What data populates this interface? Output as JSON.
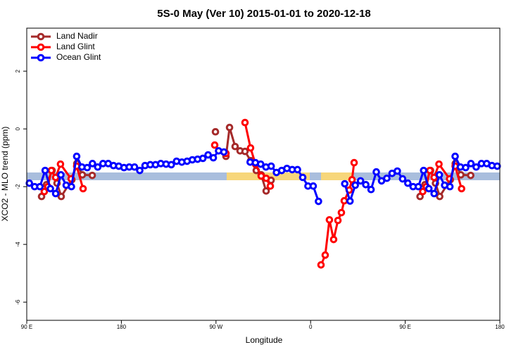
{
  "chart_data": {
    "type": "line",
    "title": "5S-0 May (Ver 10)   2015-01-01 to 2020-12-18",
    "xlabel": "Longitude",
    "ylabel": "XCO2 - MLO trend (ppm)",
    "xlim": [
      90,
      540
    ],
    "ylim": [
      -6.63,
      3.49
    ],
    "xticks": [
      {
        "value": 90,
        "label": "90 E"
      },
      {
        "value": 180,
        "label": "180"
      },
      {
        "value": 270,
        "label": "90 W"
      },
      {
        "value": 360,
        "label": "0"
      },
      {
        "value": 450,
        "label": "90 E"
      },
      {
        "value": 540,
        "label": "180"
      }
    ],
    "yticks": [
      -6,
      -4,
      -2,
      0,
      2
    ],
    "legend": "top-left",
    "series": [
      {
        "name": "Land Nadir",
        "color": "#a52a2a",
        "x": [
          104.1,
          108.8,
          114.1,
          118.8,
          122.8,
          132.9,
          137.6,
          142.9,
          152.3,
          200,
          269.5,
          275,
          279.5,
          282.9,
          288.2,
          292.9,
          297.6,
          303.0,
          308.3,
          313.0,
          317.7,
          322.4,
          400,
          464.1,
          468.8,
          474.1,
          478.8,
          482.8,
          492.9,
          497.6,
          502.9,
          512.3
        ],
        "values": [
          -2.34,
          -1.93,
          -1.44,
          -1.88,
          -2.34,
          -1.76,
          -1.2,
          -1.59,
          -1.61,
          null,
          -0.1,
          null,
          -0.95,
          0.05,
          -0.61,
          -0.76,
          -0.78,
          -1.1,
          -1.44,
          -1.59,
          -2.15,
          -1.78,
          null,
          -2.34,
          -1.93,
          -1.44,
          -1.88,
          -2.34,
          -1.76,
          -1.2,
          -1.59,
          -1.61
        ]
      },
      {
        "name": "Land Glint",
        "color": "#ff0000",
        "x": [
          106.7,
          110.1,
          113.4,
          117.5,
          122.1,
          132.2,
          137.5,
          143.6,
          200,
          268.8,
          275,
          279.5,
          290,
          297.6,
          302.9,
          307.6,
          313.0,
          317.7,
          321.7,
          350,
          369.9,
          373.9,
          377.9,
          381.9,
          386.0,
          389.3,
          392.0,
          396.7,
          399.4,
          401.4,
          430,
          466.7,
          470.1,
          473.4,
          477.5,
          482.1,
          492.2,
          497.5,
          503.6
        ],
        "values": [
          -2.17,
          -2.0,
          -1.44,
          -1.68,
          -1.22,
          -1.73,
          -1.29,
          -2.07,
          null,
          -0.56,
          null,
          -0.85,
          null,
          0.22,
          -0.66,
          -1.22,
          -1.63,
          -1.71,
          -1.98,
          null,
          -4.71,
          -4.37,
          -3.15,
          -3.83,
          -3.17,
          -2.9,
          -2.49,
          -2.12,
          -1.76,
          -1.17,
          null,
          -2.17,
          -2.0,
          -1.44,
          -1.68,
          -1.22,
          -1.73,
          -1.29,
          -2.07
        ]
      },
      {
        "name": "Ocean Glint",
        "color": "#0000ff",
        "x": [
          92.5,
          97.5,
          102.5,
          107.5,
          112.5,
          117.5,
          122.5,
          127.5,
          132.5,
          137.5,
          142.5,
          147.5,
          152.5,
          157.5,
          162.5,
          167.5,
          172.5,
          177.5,
          182.5,
          187.5,
          192.5,
          197.5,
          202.5,
          207.5,
          212.5,
          217.5,
          222.5,
          227.5,
          232.5,
          237.5,
          242.5,
          247.5,
          252.5,
          257.5,
          262.5,
          267.5,
          272.5,
          277.5,
          290,
          302.5,
          307.5,
          312.5,
          317.5,
          322.5,
          327.5,
          332.5,
          337.5,
          342.5,
          347.5,
          352.5,
          357.5,
          362.5,
          367.5,
          380,
          392.5,
          397.5,
          402.5,
          407.5,
          412.5,
          417.5,
          422.5,
          427.5,
          432.5,
          437.5,
          442.5,
          447.5,
          452.5,
          457.5,
          462.5,
          467.5,
          472.5,
          477.5,
          482.5,
          487.5,
          492.5,
          497.5,
          502.5,
          507.5,
          512.5,
          517.5,
          522.5,
          527.5,
          532.5,
          537.5
        ],
        "values": [
          -1.88,
          -2.0,
          -2.0,
          -1.44,
          -2.07,
          -2.24,
          -1.59,
          -1.95,
          -2.0,
          -0.95,
          -1.32,
          -1.34,
          -1.2,
          -1.32,
          -1.2,
          -1.2,
          -1.27,
          -1.29,
          -1.34,
          -1.32,
          -1.32,
          -1.44,
          -1.27,
          -1.24,
          -1.24,
          -1.2,
          -1.22,
          -1.24,
          -1.12,
          -1.15,
          -1.12,
          -1.07,
          -1.05,
          -1.02,
          -0.9,
          -1.0,
          -0.76,
          -0.8,
          null,
          -1.15,
          -1.17,
          -1.22,
          -1.32,
          -1.29,
          -1.51,
          -1.44,
          -1.37,
          -1.41,
          -1.41,
          -1.68,
          -1.98,
          -1.98,
          -2.51,
          null,
          -1.9,
          -2.5,
          -1.95,
          -1.8,
          -1.93,
          -2.1,
          -1.49,
          -1.8,
          -1.71,
          -1.54,
          -1.46,
          -1.73,
          -1.88,
          -2.0,
          -2.0,
          -1.44,
          -2.07,
          -2.24,
          -1.59,
          -1.95,
          -2.0,
          -0.95,
          -1.32,
          -1.34,
          -1.2,
          -1.32,
          -1.2,
          -1.2,
          -1.27,
          -1.29
        ]
      }
    ]
  }
}
